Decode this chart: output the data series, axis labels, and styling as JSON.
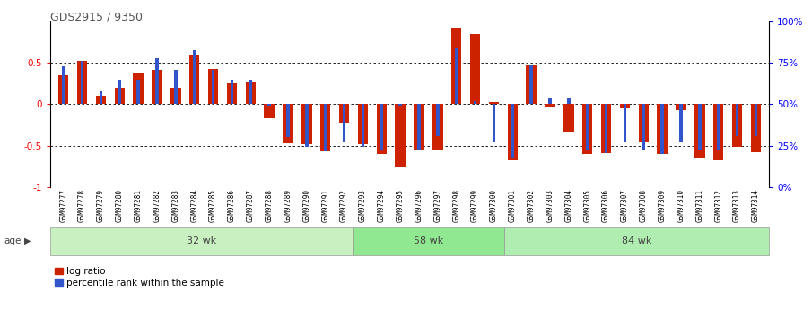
{
  "title": "GDS2915 / 9350",
  "samples": [
    "GSM97277",
    "GSM97278",
    "GSM97279",
    "GSM97280",
    "GSM97281",
    "GSM97282",
    "GSM97283",
    "GSM97284",
    "GSM97285",
    "GSM97286",
    "GSM97287",
    "GSM97288",
    "GSM97289",
    "GSM97290",
    "GSM97291",
    "GSM97292",
    "GSM97293",
    "GSM97294",
    "GSM97295",
    "GSM97296",
    "GSM97297",
    "GSM97298",
    "GSM97299",
    "GSM97300",
    "GSM97301",
    "GSM97302",
    "GSM97303",
    "GSM97304",
    "GSM97305",
    "GSM97306",
    "GSM97307",
    "GSM97308",
    "GSM97309",
    "GSM97310",
    "GSM97311",
    "GSM97312",
    "GSM97313",
    "GSM97314"
  ],
  "log_ratio": [
    0.35,
    0.53,
    0.1,
    0.2,
    0.38,
    0.42,
    0.2,
    0.6,
    0.43,
    0.25,
    0.27,
    -0.17,
    -0.47,
    -0.48,
    -0.57,
    -0.22,
    -0.48,
    -0.6,
    -0.75,
    -0.55,
    -0.55,
    0.93,
    0.85,
    0.03,
    -0.68,
    0.47,
    -0.03,
    -0.33,
    -0.6,
    -0.59,
    -0.05,
    -0.46,
    -0.6,
    -0.07,
    -0.65,
    -0.68,
    -0.52,
    -0.58
  ],
  "pct_raw": [
    73,
    76.5,
    58,
    65,
    65,
    78,
    71,
    83,
    71,
    65,
    65,
    49,
    30,
    24.5,
    21.5,
    27.5,
    24.5,
    22.5,
    49,
    22.5,
    31,
    84,
    52,
    27,
    17.5,
    73.5,
    54,
    54,
    22.5,
    20.5,
    27,
    22.5,
    20,
    27,
    22.5,
    22.5,
    31,
    31
  ],
  "groups": [
    {
      "label": "32 wk",
      "start": 0,
      "end": 16,
      "color": "#c8f0c0"
    },
    {
      "label": "58 wk",
      "start": 16,
      "end": 24,
      "color": "#90e890"
    },
    {
      "label": "84 wk",
      "start": 24,
      "end": 38,
      "color": "#b0edb0"
    }
  ],
  "bar_color_red": "#cc2200",
  "bar_color_blue": "#3355cc",
  "ylim": [
    -1.0,
    1.0
  ],
  "hlines": [
    -0.5,
    0.0,
    0.5
  ],
  "legend_log_ratio": "log ratio",
  "legend_percentile": "percentile rank within the sample",
  "bg_label_area": "#e8e8e8"
}
